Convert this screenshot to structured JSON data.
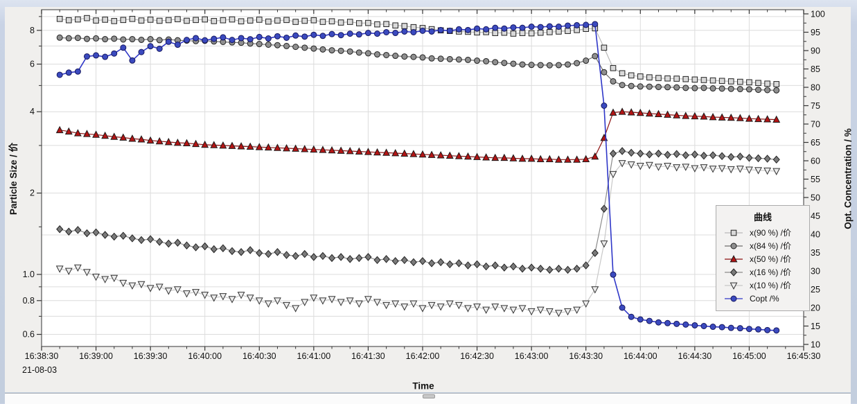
{
  "window": {
    "date_label": "21-08-03",
    "colors": {
      "window_border": "#c9d3e5",
      "panel_bg": "#f0efed",
      "plot_bg": "#ffffff",
      "gridline": "#dcdcdc",
      "frame": "#555555"
    }
  },
  "chart_data": {
    "type": "line",
    "title": "",
    "x_axis": {
      "label": "Time",
      "date": "21-08-03",
      "start_time": "16:38:30",
      "end_time": "16:45:30",
      "major_interval_s": 30,
      "minor_interval_s": 10,
      "tick_labels": [
        "16:38:30",
        "16:39:00",
        "16:39:30",
        "16:40:00",
        "16:40:30",
        "16:41:00",
        "16:41:30",
        "16:42:00",
        "16:42:30",
        "16:43:00",
        "16:43:30",
        "16:44:00",
        "16:44:30",
        "16:45:00",
        "16:45:30"
      ]
    },
    "y_left": {
      "label": "Particle Size / 价",
      "scale": "log",
      "range": [
        0.54,
        9.55
      ],
      "tick_values": [
        8,
        6,
        4,
        2,
        1.0,
        0.8,
        0.6
      ],
      "tick_labels": [
        "8",
        "6",
        "4",
        "2",
        "1.0",
        "0.8",
        "0.6"
      ],
      "minor_ticks": [
        9,
        7,
        5,
        3,
        1.5,
        0.9,
        0.7
      ],
      "gridlines": [
        9,
        8,
        7,
        6,
        5,
        4,
        3,
        2,
        1.4,
        1.0,
        0.9,
        0.8,
        0.7,
        0.6
      ]
    },
    "y_right": {
      "label": "Opt. Concentration / %",
      "scale": "linear",
      "range": [
        10,
        100
      ],
      "tick_step": 5,
      "minor_step": 2.5,
      "tick_labels": [
        "100",
        "95",
        "90",
        "85",
        "80",
        "75",
        "70",
        "65",
        "60",
        "55",
        "50",
        "45",
        "40",
        "35",
        "30",
        "25",
        "20",
        "15",
        "10"
      ]
    },
    "legend": {
      "title": "曲线",
      "position": "right-middle"
    },
    "sampling": {
      "t0_seconds_after_start": 10,
      "dt_seconds": 5,
      "note": "t measured from 16:38:30"
    },
    "series": [
      {
        "name": "x(90 %) /价",
        "axis": "left",
        "marker": "square-open",
        "color": "#d9d9d9",
        "marker_stroke": "#222222",
        "line_color": "#b9b9b9",
        "values": [
          8.82,
          8.72,
          8.78,
          8.88,
          8.7,
          8.76,
          8.66,
          8.74,
          8.82,
          8.7,
          8.76,
          8.68,
          8.73,
          8.8,
          8.68,
          8.74,
          8.78,
          8.66,
          8.72,
          8.78,
          8.64,
          8.7,
          8.76,
          8.62,
          8.7,
          8.74,
          8.6,
          8.68,
          8.72,
          8.6,
          8.64,
          8.55,
          8.6,
          8.5,
          8.52,
          8.42,
          8.44,
          8.34,
          8.3,
          8.22,
          8.16,
          8.08,
          8.0,
          7.96,
          7.92,
          7.9,
          7.86,
          7.88,
          7.82,
          7.84,
          7.78,
          7.82,
          7.8,
          7.84,
          7.88,
          7.92,
          7.96,
          8.02,
          8.1,
          8.14,
          6.9,
          5.8,
          5.55,
          5.45,
          5.4,
          5.36,
          5.33,
          5.31,
          5.3,
          5.28,
          5.26,
          5.24,
          5.22,
          5.2,
          5.18,
          5.16,
          5.14,
          5.11,
          5.08,
          5.06
        ]
      },
      {
        "name": "x(84 %) /价",
        "axis": "left",
        "marker": "circle",
        "color": "#8f8f8f",
        "marker_stroke": "#222222",
        "line_color": "#6e6e6e",
        "values": [
          7.52,
          7.48,
          7.5,
          7.44,
          7.47,
          7.42,
          7.45,
          7.4,
          7.42,
          7.38,
          7.42,
          7.36,
          7.4,
          7.35,
          7.33,
          7.3,
          7.32,
          7.28,
          7.25,
          7.22,
          7.2,
          7.15,
          7.12,
          7.08,
          7.05,
          7.0,
          6.95,
          6.9,
          6.85,
          6.8,
          6.75,
          6.72,
          6.68,
          6.62,
          6.58,
          6.52,
          6.48,
          6.44,
          6.4,
          6.38,
          6.35,
          6.3,
          6.28,
          6.26,
          6.24,
          6.22,
          6.18,
          6.15,
          6.1,
          6.06,
          6.02,
          5.98,
          5.96,
          5.95,
          5.94,
          5.95,
          5.98,
          6.05,
          6.18,
          6.42,
          5.6,
          5.18,
          5.02,
          4.98,
          4.96,
          4.95,
          4.94,
          4.93,
          4.92,
          4.9,
          4.89,
          4.9,
          4.88,
          4.87,
          4.86,
          4.85,
          4.84,
          4.82,
          4.81,
          4.8
        ]
      },
      {
        "name": "x(50 %) /价",
        "axis": "left",
        "marker": "triangle-up",
        "color": "#b41414",
        "marker_stroke": "#1a1a1a",
        "line_color": "#8c1010",
        "values": [
          3.42,
          3.38,
          3.33,
          3.31,
          3.29,
          3.26,
          3.23,
          3.21,
          3.18,
          3.16,
          3.13,
          3.11,
          3.09,
          3.07,
          3.06,
          3.04,
          3.02,
          3.01,
          3.0,
          2.99,
          2.98,
          2.97,
          2.96,
          2.95,
          2.94,
          2.93,
          2.92,
          2.91,
          2.9,
          2.89,
          2.88,
          2.87,
          2.86,
          2.85,
          2.84,
          2.83,
          2.82,
          2.81,
          2.8,
          2.79,
          2.78,
          2.77,
          2.76,
          2.75,
          2.74,
          2.73,
          2.72,
          2.71,
          2.7,
          2.7,
          2.69,
          2.68,
          2.68,
          2.67,
          2.67,
          2.66,
          2.66,
          2.66,
          2.67,
          2.73,
          3.2,
          3.97,
          4.0,
          3.98,
          3.96,
          3.94,
          3.92,
          3.9,
          3.88,
          3.86,
          3.85,
          3.84,
          3.82,
          3.81,
          3.8,
          3.79,
          3.77,
          3.76,
          3.75,
          3.74
        ]
      },
      {
        "name": "x(16 %) /价",
        "axis": "left",
        "marker": "diamond",
        "color": "#7a7a7a",
        "marker_stroke": "#222222",
        "line_color": "#8a8a8a",
        "values": [
          1.47,
          1.44,
          1.46,
          1.42,
          1.43,
          1.4,
          1.38,
          1.39,
          1.36,
          1.34,
          1.35,
          1.32,
          1.3,
          1.31,
          1.28,
          1.26,
          1.27,
          1.24,
          1.25,
          1.22,
          1.21,
          1.23,
          1.2,
          1.19,
          1.21,
          1.18,
          1.17,
          1.19,
          1.16,
          1.17,
          1.15,
          1.16,
          1.14,
          1.15,
          1.16,
          1.13,
          1.14,
          1.12,
          1.13,
          1.11,
          1.12,
          1.1,
          1.11,
          1.09,
          1.1,
          1.08,
          1.09,
          1.07,
          1.08,
          1.06,
          1.07,
          1.05,
          1.06,
          1.05,
          1.04,
          1.05,
          1.04,
          1.05,
          1.08,
          1.2,
          1.75,
          2.8,
          2.86,
          2.82,
          2.8,
          2.78,
          2.8,
          2.77,
          2.79,
          2.76,
          2.78,
          2.75,
          2.76,
          2.74,
          2.72,
          2.73,
          2.7,
          2.69,
          2.68,
          2.66
        ]
      },
      {
        "name": "x(10 %) /价",
        "axis": "left",
        "marker": "triangle-down",
        "color": "#ececec",
        "marker_stroke": "#333333",
        "line_color": "#c8c8c8",
        "values": [
          1.05,
          1.03,
          1.06,
          1.02,
          0.98,
          0.96,
          0.97,
          0.93,
          0.91,
          0.92,
          0.89,
          0.9,
          0.87,
          0.88,
          0.85,
          0.86,
          0.84,
          0.82,
          0.83,
          0.81,
          0.84,
          0.82,
          0.8,
          0.78,
          0.8,
          0.77,
          0.75,
          0.79,
          0.82,
          0.8,
          0.81,
          0.79,
          0.8,
          0.78,
          0.81,
          0.79,
          0.77,
          0.78,
          0.76,
          0.78,
          0.75,
          0.77,
          0.76,
          0.78,
          0.77,
          0.75,
          0.76,
          0.74,
          0.76,
          0.75,
          0.74,
          0.75,
          0.73,
          0.74,
          0.73,
          0.72,
          0.73,
          0.74,
          0.78,
          0.88,
          1.3,
          2.35,
          2.58,
          2.55,
          2.52,
          2.54,
          2.5,
          2.52,
          2.49,
          2.5,
          2.47,
          2.49,
          2.46,
          2.47,
          2.45,
          2.46,
          2.44,
          2.43,
          2.42,
          2.41
        ]
      },
      {
        "name": "Copt /%",
        "axis": "right",
        "marker": "circle",
        "color": "#3b4abf",
        "marker_stroke": "#15175e",
        "line_color": "#2e36c8",
        "values": [
          83.4,
          84.0,
          84.3,
          88.4,
          88.7,
          88.3,
          89.2,
          90.8,
          87.3,
          89.6,
          91.2,
          90.5,
          92.4,
          91.6,
          92.9,
          93.4,
          92.8,
          93.2,
          93.6,
          92.9,
          93.4,
          93.1,
          93.7,
          93.3,
          93.9,
          93.5,
          94.1,
          93.8,
          94.3,
          94.0,
          94.5,
          94.2,
          94.6,
          94.4,
          94.8,
          94.6,
          95.0,
          94.8,
          95.2,
          95.0,
          95.4,
          95.2,
          95.6,
          95.4,
          95.8,
          95.6,
          96.0,
          95.8,
          96.2,
          96.0,
          96.3,
          96.2,
          96.5,
          96.4,
          96.6,
          96.5,
          96.8,
          96.9,
          97.0,
          97.2,
          75.0,
          29.0,
          20.0,
          17.5,
          16.8,
          16.4,
          16.0,
          15.8,
          15.6,
          15.4,
          15.2,
          15.0,
          14.8,
          14.7,
          14.5,
          14.4,
          14.2,
          14.1,
          13.9,
          13.8
        ]
      }
    ]
  }
}
